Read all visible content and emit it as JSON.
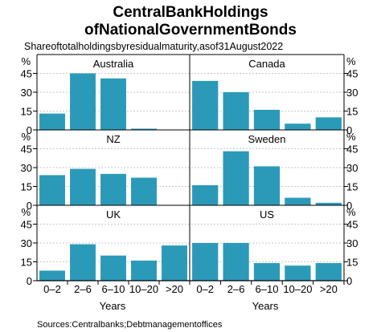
{
  "chart_data": {
    "type": "bar",
    "title_lines": [
      "CentralBankHoldings",
      "ofNationalGovernmentBonds"
    ],
    "subtitle": "Shareoftotalholdingsbyresidualmaturity,asof31August2022",
    "unit": "%",
    "xlabel": "Years",
    "source": "Sources:Centralbanks;Debtmanagementoffices",
    "categories": [
      "0–2",
      "2–6",
      "6–10",
      "10–20",
      ">20"
    ],
    "ylim": [
      0,
      60
    ],
    "yticks": [
      "0",
      "15",
      "30",
      "45"
    ],
    "bar_color": "#2b9ab8",
    "grid": true,
    "panels": [
      {
        "name": "Australia",
        "values": [
          13,
          45,
          41,
          1,
          0
        ]
      },
      {
        "name": "Canada",
        "values": [
          39,
          30,
          16,
          5,
          10
        ]
      },
      {
        "name": "NZ",
        "values": [
          24,
          29,
          25,
          22,
          0
        ]
      },
      {
        "name": "Sweden",
        "values": [
          16,
          43,
          31,
          6,
          2
        ]
      },
      {
        "name": "UK",
        "values": [
          8,
          29,
          20,
          16,
          28
        ]
      },
      {
        "name": "US",
        "values": [
          30,
          30,
          14,
          12,
          14
        ]
      }
    ]
  }
}
